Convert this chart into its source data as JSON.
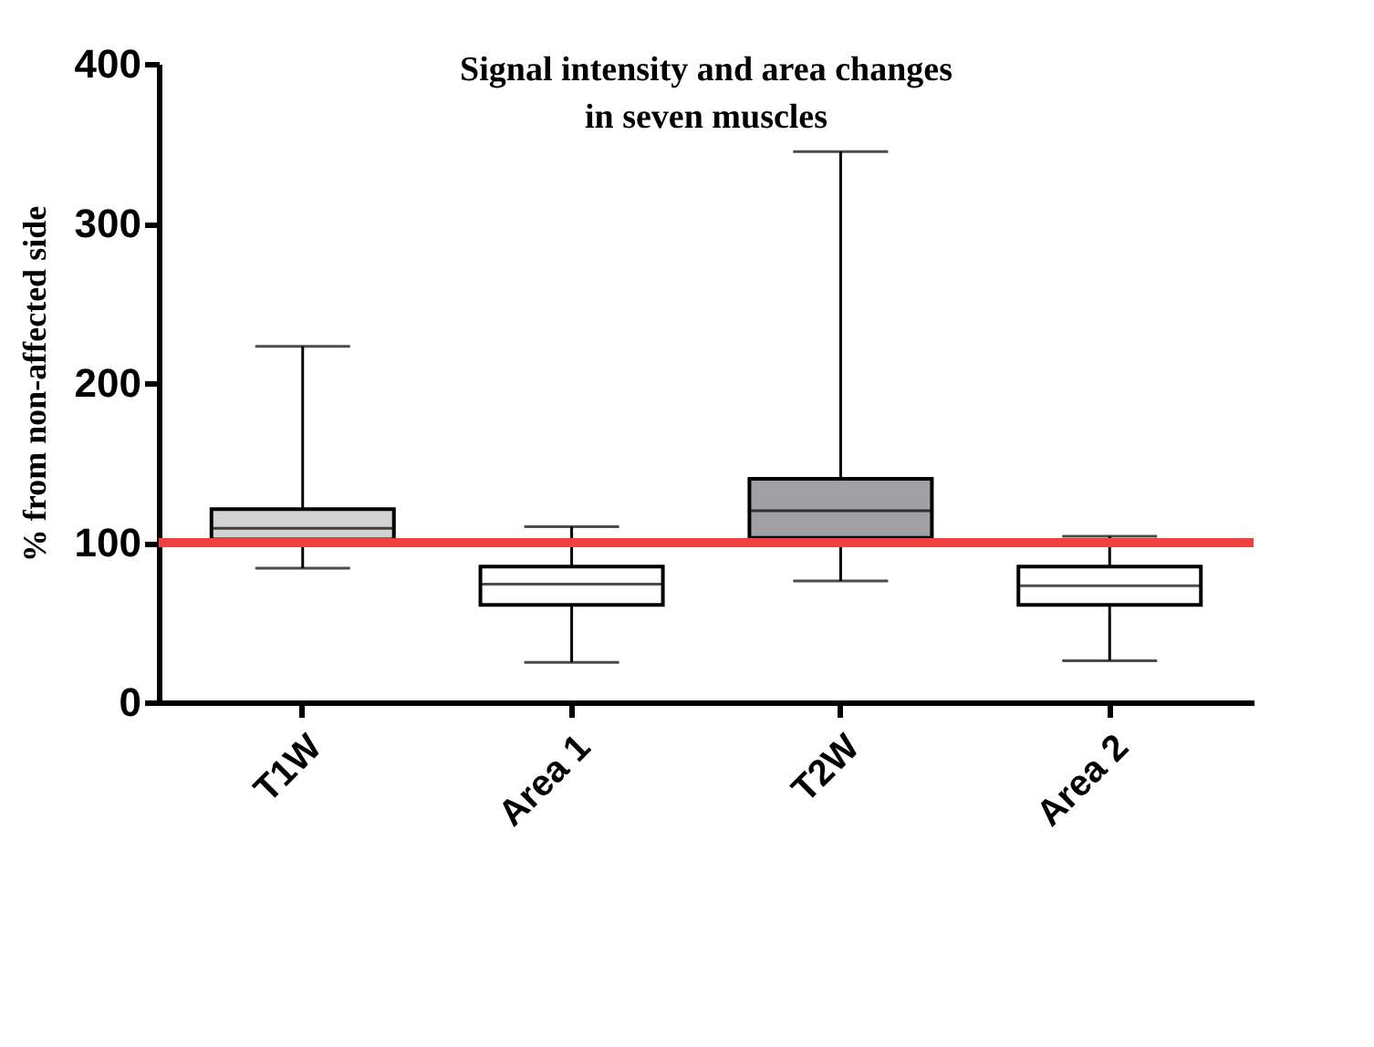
{
  "chart_data": {
    "type": "box",
    "title": "Signal intensity and area changes\nin seven muscles",
    "ylabel": "% from non-affected side",
    "categories": [
      "T1W",
      "Area 1",
      "T2W",
      "Area 2"
    ],
    "boxes": [
      {
        "low": 84,
        "q1": 102,
        "median": 109,
        "q3": 121,
        "high": 223
      },
      {
        "low": 25,
        "q1": 61,
        "median": 74,
        "q3": 85,
        "high": 110
      },
      {
        "low": 76,
        "q1": 103,
        "median": 120,
        "q3": 140,
        "high": 345
      },
      {
        "low": 26,
        "q1": 61,
        "median": 73,
        "q3": 85,
        "high": 104
      }
    ],
    "colors": [
      "#d3d3d3",
      "#ffffff",
      "#a0a0a4",
      "#ffffff"
    ],
    "ylim": [
      0,
      400
    ],
    "yticks": [
      0,
      100,
      200,
      300,
      400
    ],
    "ref_lines": [
      {
        "axis": "y",
        "value": 100,
        "color": "#f04040"
      }
    ]
  }
}
